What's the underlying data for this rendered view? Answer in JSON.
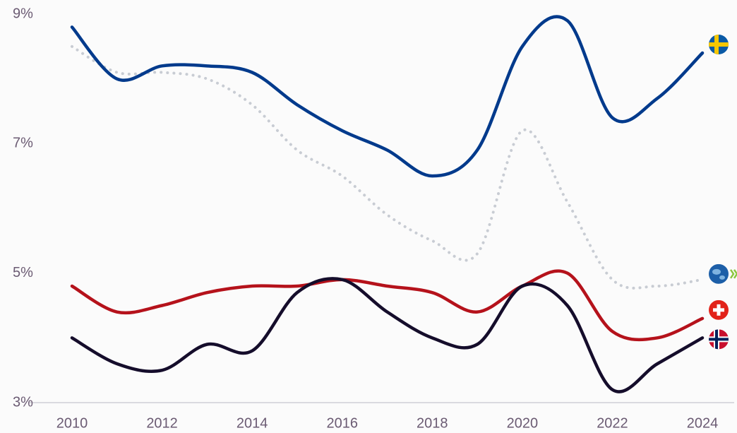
{
  "chart_data": {
    "type": "line",
    "x": [
      2010,
      2011,
      2012,
      2013,
      2014,
      2015,
      2016,
      2017,
      2018,
      2019,
      2020,
      2021,
      2022,
      2023,
      2024
    ],
    "series": [
      {
        "color": "#c8ccd3",
        "style": "dotted",
        "values": [
          8.5,
          8.1,
          8.1,
          8.0,
          7.6,
          6.9,
          6.5,
          5.9,
          5.5,
          5.3,
          7.2,
          6.1,
          4.9,
          4.8,
          4.9
        ]
      },
      {
        "color": "#003a8c",
        "values": [
          8.8,
          8.0,
          8.2,
          8.2,
          8.1,
          7.6,
          7.2,
          6.9,
          6.5,
          6.9,
          8.5,
          8.9,
          7.4,
          7.7,
          8.4
        ]
      },
      {
        "color": "#b5121b",
        "values": [
          4.8,
          4.4,
          4.5,
          4.7,
          4.8,
          4.8,
          4.9,
          4.8,
          4.7,
          4.4,
          4.8,
          5.0,
          4.1,
          4.0,
          4.3
        ]
      },
      {
        "color": "#150d2b",
        "values": [
          4.0,
          3.6,
          3.5,
          3.9,
          3.8,
          4.7,
          4.9,
          4.4,
          4.0,
          3.9,
          4.8,
          4.5,
          3.2,
          3.6,
          4.0
        ]
      }
    ],
    "xlim": [
      2009,
      2025
    ],
    "xticks": [
      2010,
      2012,
      2014,
      2016,
      2018,
      2020,
      2022,
      2024
    ],
    "ylim": [
      3,
      9
    ],
    "yticks": [
      {
        "value": 3,
        "label": "3%"
      },
      {
        "value": 5,
        "label": "5%"
      },
      {
        "value": 7,
        "label": "7%"
      },
      {
        "value": 9,
        "label": "9%"
      }
    ],
    "grid": false
  }
}
